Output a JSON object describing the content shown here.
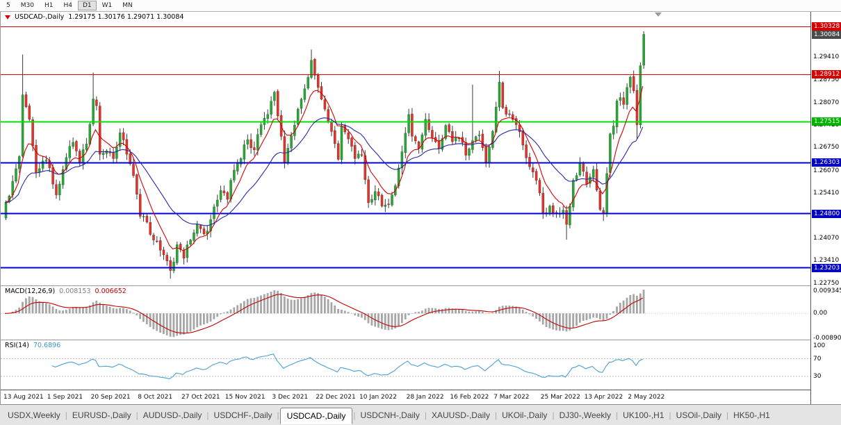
{
  "toolbar": {
    "periods": [
      "5",
      "M30",
      "H1",
      "H4",
      "D1",
      "W1",
      "MN"
    ],
    "active": "D1"
  },
  "chart": {
    "symbol_label": "USDCAD-,Daily",
    "ohlc_text": "1.29175 1.30176 1.29071 1.30084"
  },
  "chart_data": {
    "type": "candlestick",
    "symbol": "USDCAD-",
    "timeframe": "Daily",
    "seed": 7,
    "num_candles": 191,
    "last_candle": {
      "open": 1.29175,
      "high": 1.30176,
      "low": 1.29071,
      "close": 1.30084
    },
    "price_axis": {
      "min": 1.2268,
      "max": 1.3075,
      "ticks": [
        {
          "price": 1.2941,
          "text": "1.29410"
        },
        {
          "price": 1.2875,
          "text": "1.28750"
        },
        {
          "price": 1.2807,
          "text": "1.28070"
        },
        {
          "price": 1.2741,
          "text": "1.27410"
        },
        {
          "price": 1.2675,
          "text": "1.26750"
        },
        {
          "price": 1.2607,
          "text": "1.26070"
        },
        {
          "price": 1.2541,
          "text": "1.25410"
        },
        {
          "price": 1.2407,
          "text": "1.24070"
        },
        {
          "price": 1.2341,
          "text": "1.23410"
        },
        {
          "price": 1.2275,
          "text": "1.22750"
        }
      ]
    },
    "badges": [
      {
        "text": "1.30328",
        "price": 1.30328,
        "bg": "#d60000",
        "name": "resistance-line-badge"
      },
      {
        "text": "1.30084",
        "price": 1.30084,
        "bg": "#4a4a4a",
        "name": "current-price-badge"
      },
      {
        "text": "1.28912",
        "price": 1.28912,
        "bg": "#d60000",
        "name": "resistance-line-badge"
      },
      {
        "text": "1.27515",
        "price": 1.27515,
        "bg": "#00b400",
        "name": "pivot-line-badge"
      },
      {
        "text": "1.26303",
        "price": 1.26303,
        "bg": "#0000c0",
        "name": "support-line-badge"
      },
      {
        "text": "1.24800",
        "price": 1.248,
        "bg": "#0000c0",
        "name": "support-line-badge"
      },
      {
        "text": "1.23203",
        "price": 1.23203,
        "bg": "#0000c0",
        "name": "support-line-badge"
      }
    ],
    "hlines": [
      {
        "price": 1.30328,
        "color": "#e00000",
        "w": 1
      },
      {
        "price": 1.28912,
        "color": "#e00000",
        "w": 1
      },
      {
        "price": 1.27515,
        "color": "#00e000",
        "w": 2
      },
      {
        "price": 1.26303,
        "color": "#0000d2",
        "w": 2
      },
      {
        "price": 1.248,
        "color": "#0000d2",
        "w": 2
      },
      {
        "price": 1.23203,
        "color": "#0000d2",
        "w": 2
      }
    ],
    "close_anchors": [
      [
        0,
        1.2512
      ],
      [
        2,
        1.2575
      ],
      [
        4,
        1.2648
      ],
      [
        5,
        1.283
      ],
      [
        6,
        1.2795
      ],
      [
        7,
        1.2758
      ],
      [
        9,
        1.26
      ],
      [
        11,
        1.2635
      ],
      [
        13,
        1.2615
      ],
      [
        15,
        1.2535
      ],
      [
        18,
        1.2645
      ],
      [
        20,
        1.269
      ],
      [
        22,
        1.263
      ],
      [
        24,
        1.2685
      ],
      [
        26,
        1.2818
      ],
      [
        27,
        1.2798
      ],
      [
        28,
        1.2655
      ],
      [
        30,
        1.2665
      ],
      [
        32,
        1.2642
      ],
      [
        34,
        1.2718
      ],
      [
        36,
        1.2655
      ],
      [
        38,
        1.2592
      ],
      [
        40,
        1.2472
      ],
      [
        42,
        1.2455
      ],
      [
        44,
        1.2402
      ],
      [
        46,
        1.2372
      ],
      [
        48,
        1.234
      ],
      [
        49,
        1.2312
      ],
      [
        51,
        1.2388
      ],
      [
        53,
        1.2348
      ],
      [
        55,
        1.2402
      ],
      [
        57,
        1.2448
      ],
      [
        59,
        1.242
      ],
      [
        61,
        1.2462
      ],
      [
        63,
        1.252
      ],
      [
        64,
        1.2548
      ],
      [
        66,
        1.2522
      ],
      [
        68,
        1.2608
      ],
      [
        70,
        1.2642
      ],
      [
        72,
        1.2698
      ],
      [
        74,
        1.2668
      ],
      [
        76,
        1.2742
      ],
      [
        78,
        1.2772
      ],
      [
        80,
        1.2838
      ],
      [
        81,
        1.2768
      ],
      [
        83,
        1.2632
      ],
      [
        85,
        1.271
      ],
      [
        87,
        1.2788
      ],
      [
        89,
        1.2848
      ],
      [
        91,
        1.2932
      ],
      [
        92,
        1.2888
      ],
      [
        93,
        1.2852
      ],
      [
        95,
        1.2788
      ],
      [
        97,
        1.2722
      ],
      [
        99,
        1.264
      ],
      [
        100,
        1.2738
      ],
      [
        102,
        1.27
      ],
      [
        104,
        1.2642
      ],
      [
        106,
        1.2652
      ],
      [
        108,
        1.2512
      ],
      [
        110,
        1.2545
      ],
      [
        112,
        1.2502
      ],
      [
        114,
        1.2506
      ],
      [
        116,
        1.2562
      ],
      [
        118,
        1.2662
      ],
      [
        120,
        1.2772
      ],
      [
        121,
        1.2708
      ],
      [
        123,
        1.2672
      ],
      [
        125,
        1.2758
      ],
      [
        127,
        1.2702
      ],
      [
        129,
        1.2672
      ],
      [
        131,
        1.274
      ],
      [
        133,
        1.2692
      ],
      [
        135,
        1.2702
      ],
      [
        137,
        1.2652
      ],
      [
        139,
        1.2695
      ],
      [
        141,
        1.2712
      ],
      [
        143,
        1.2632
      ],
      [
        145,
        1.2722
      ],
      [
        147,
        1.2868
      ],
      [
        148,
        1.2792
      ],
      [
        150,
        1.2772
      ],
      [
        152,
        1.2742
      ],
      [
        154,
        1.2682
      ],
      [
        156,
        1.2618
      ],
      [
        158,
        1.2578
      ],
      [
        160,
        1.2482
      ],
      [
        162,
        1.2502
      ],
      [
        164,
        1.2482
      ],
      [
        166,
        1.249
      ],
      [
        167,
        1.2448
      ],
      [
        169,
        1.2578
      ],
      [
        171,
        1.2628
      ],
      [
        173,
        1.2566
      ],
      [
        175,
        1.261
      ],
      [
        177,
        1.2492
      ],
      [
        178,
        1.2482
      ],
      [
        179,
        1.2598
      ],
      [
        180,
        1.2715
      ],
      [
        181,
        1.2738
      ],
      [
        182,
        1.2812
      ],
      [
        183,
        1.2822
      ],
      [
        184,
        1.2802
      ],
      [
        185,
        1.2852
      ],
      [
        186,
        1.2882
      ],
      [
        187,
        1.2842
      ],
      [
        188,
        1.2742
      ],
      [
        189,
        1.2916
      ],
      [
        190,
        1.30084
      ]
    ],
    "spikes": [
      {
        "i": 5,
        "high": 1.2949
      },
      {
        "i": 26,
        "high": 1.2896
      },
      {
        "i": 49,
        "low": 1.2288
      },
      {
        "i": 91,
        "high": 1.2964
      },
      {
        "i": 139,
        "high": 1.286
      },
      {
        "i": 147,
        "high": 1.2901
      },
      {
        "i": 167,
        "low": 1.2403
      },
      {
        "i": 178,
        "low": 1.2458
      },
      {
        "i": 188,
        "low": 1.27
      }
    ],
    "ma": [
      {
        "type": "ema",
        "period": 8,
        "color": "#d40000"
      },
      {
        "type": "ema",
        "period": 24,
        "color": "#2727a8"
      }
    ],
    "date_labels": [
      [
        0,
        "13 Aug 2021"
      ],
      [
        13,
        "1 Sep 2021"
      ],
      [
        26,
        "20 Sep 2021"
      ],
      [
        40,
        "8 Oct 2021"
      ],
      [
        53,
        "27 Oct 2021"
      ],
      [
        66,
        "15 Nov 2021"
      ],
      [
        80,
        "3 Dec 2021"
      ],
      [
        93,
        "22 Dec 2021"
      ],
      [
        106,
        "10 Jan 2022"
      ],
      [
        120,
        "28 Jan 2022"
      ],
      [
        133,
        "16 Feb 2022"
      ],
      [
        146,
        "7 Mar 2022"
      ],
      [
        160,
        "25 Mar 2022"
      ],
      [
        173,
        "13 Apr 2022"
      ],
      [
        186,
        "2 May 2022"
      ]
    ],
    "macd": {
      "label": "MACD(12,26,9)",
      "main_value": "0.008153",
      "signal_value": "0.006652",
      "fast": 12,
      "slow": 26,
      "signal": 9,
      "axis_top": "0.009345",
      "axis_top_value": 0.009345,
      "axis_mid": "0.00",
      "axis_bottom": "-0.008902",
      "axis_bottom_value": -0.008902,
      "scale_top": 0.0097,
      "scale_bottom": -0.0093
    },
    "rsi": {
      "label": "RSI(14)",
      "value": "70.6896",
      "period": 14,
      "levels": [
        70,
        30
      ],
      "scale_max": 112,
      "axis": [
        {
          "value": 100,
          "text": "100"
        },
        {
          "value": 70,
          "text": "70"
        },
        {
          "value": 30,
          "text": "30"
        }
      ]
    },
    "colors": {
      "up": "#2fa33b",
      "up_stroke": "#1d7a26",
      "down": "#dc3830",
      "down_stroke": "#97231c",
      "wick": "#3a3a3a",
      "macd_hist": "#a6a6a6",
      "macd_signal": "#c40000",
      "rsi_line": "#4aa0d5",
      "rsi_level": "#bdbdbd"
    }
  },
  "tabs": {
    "items": [
      "USDX,Weekly",
      "EURUSD-,Daily",
      "AUDUSD-,Daily",
      "USDCHF-,Daily",
      "USDCAD-,Daily",
      "USDCNH-,Daily",
      "XAUUSD-,Daily",
      "UKOil-,Daily",
      "DJ30-,Weekly",
      "UK100-,H1",
      "USOil-,Daily",
      "HK50-,H1"
    ],
    "active": "USDCAD-,Daily"
  }
}
